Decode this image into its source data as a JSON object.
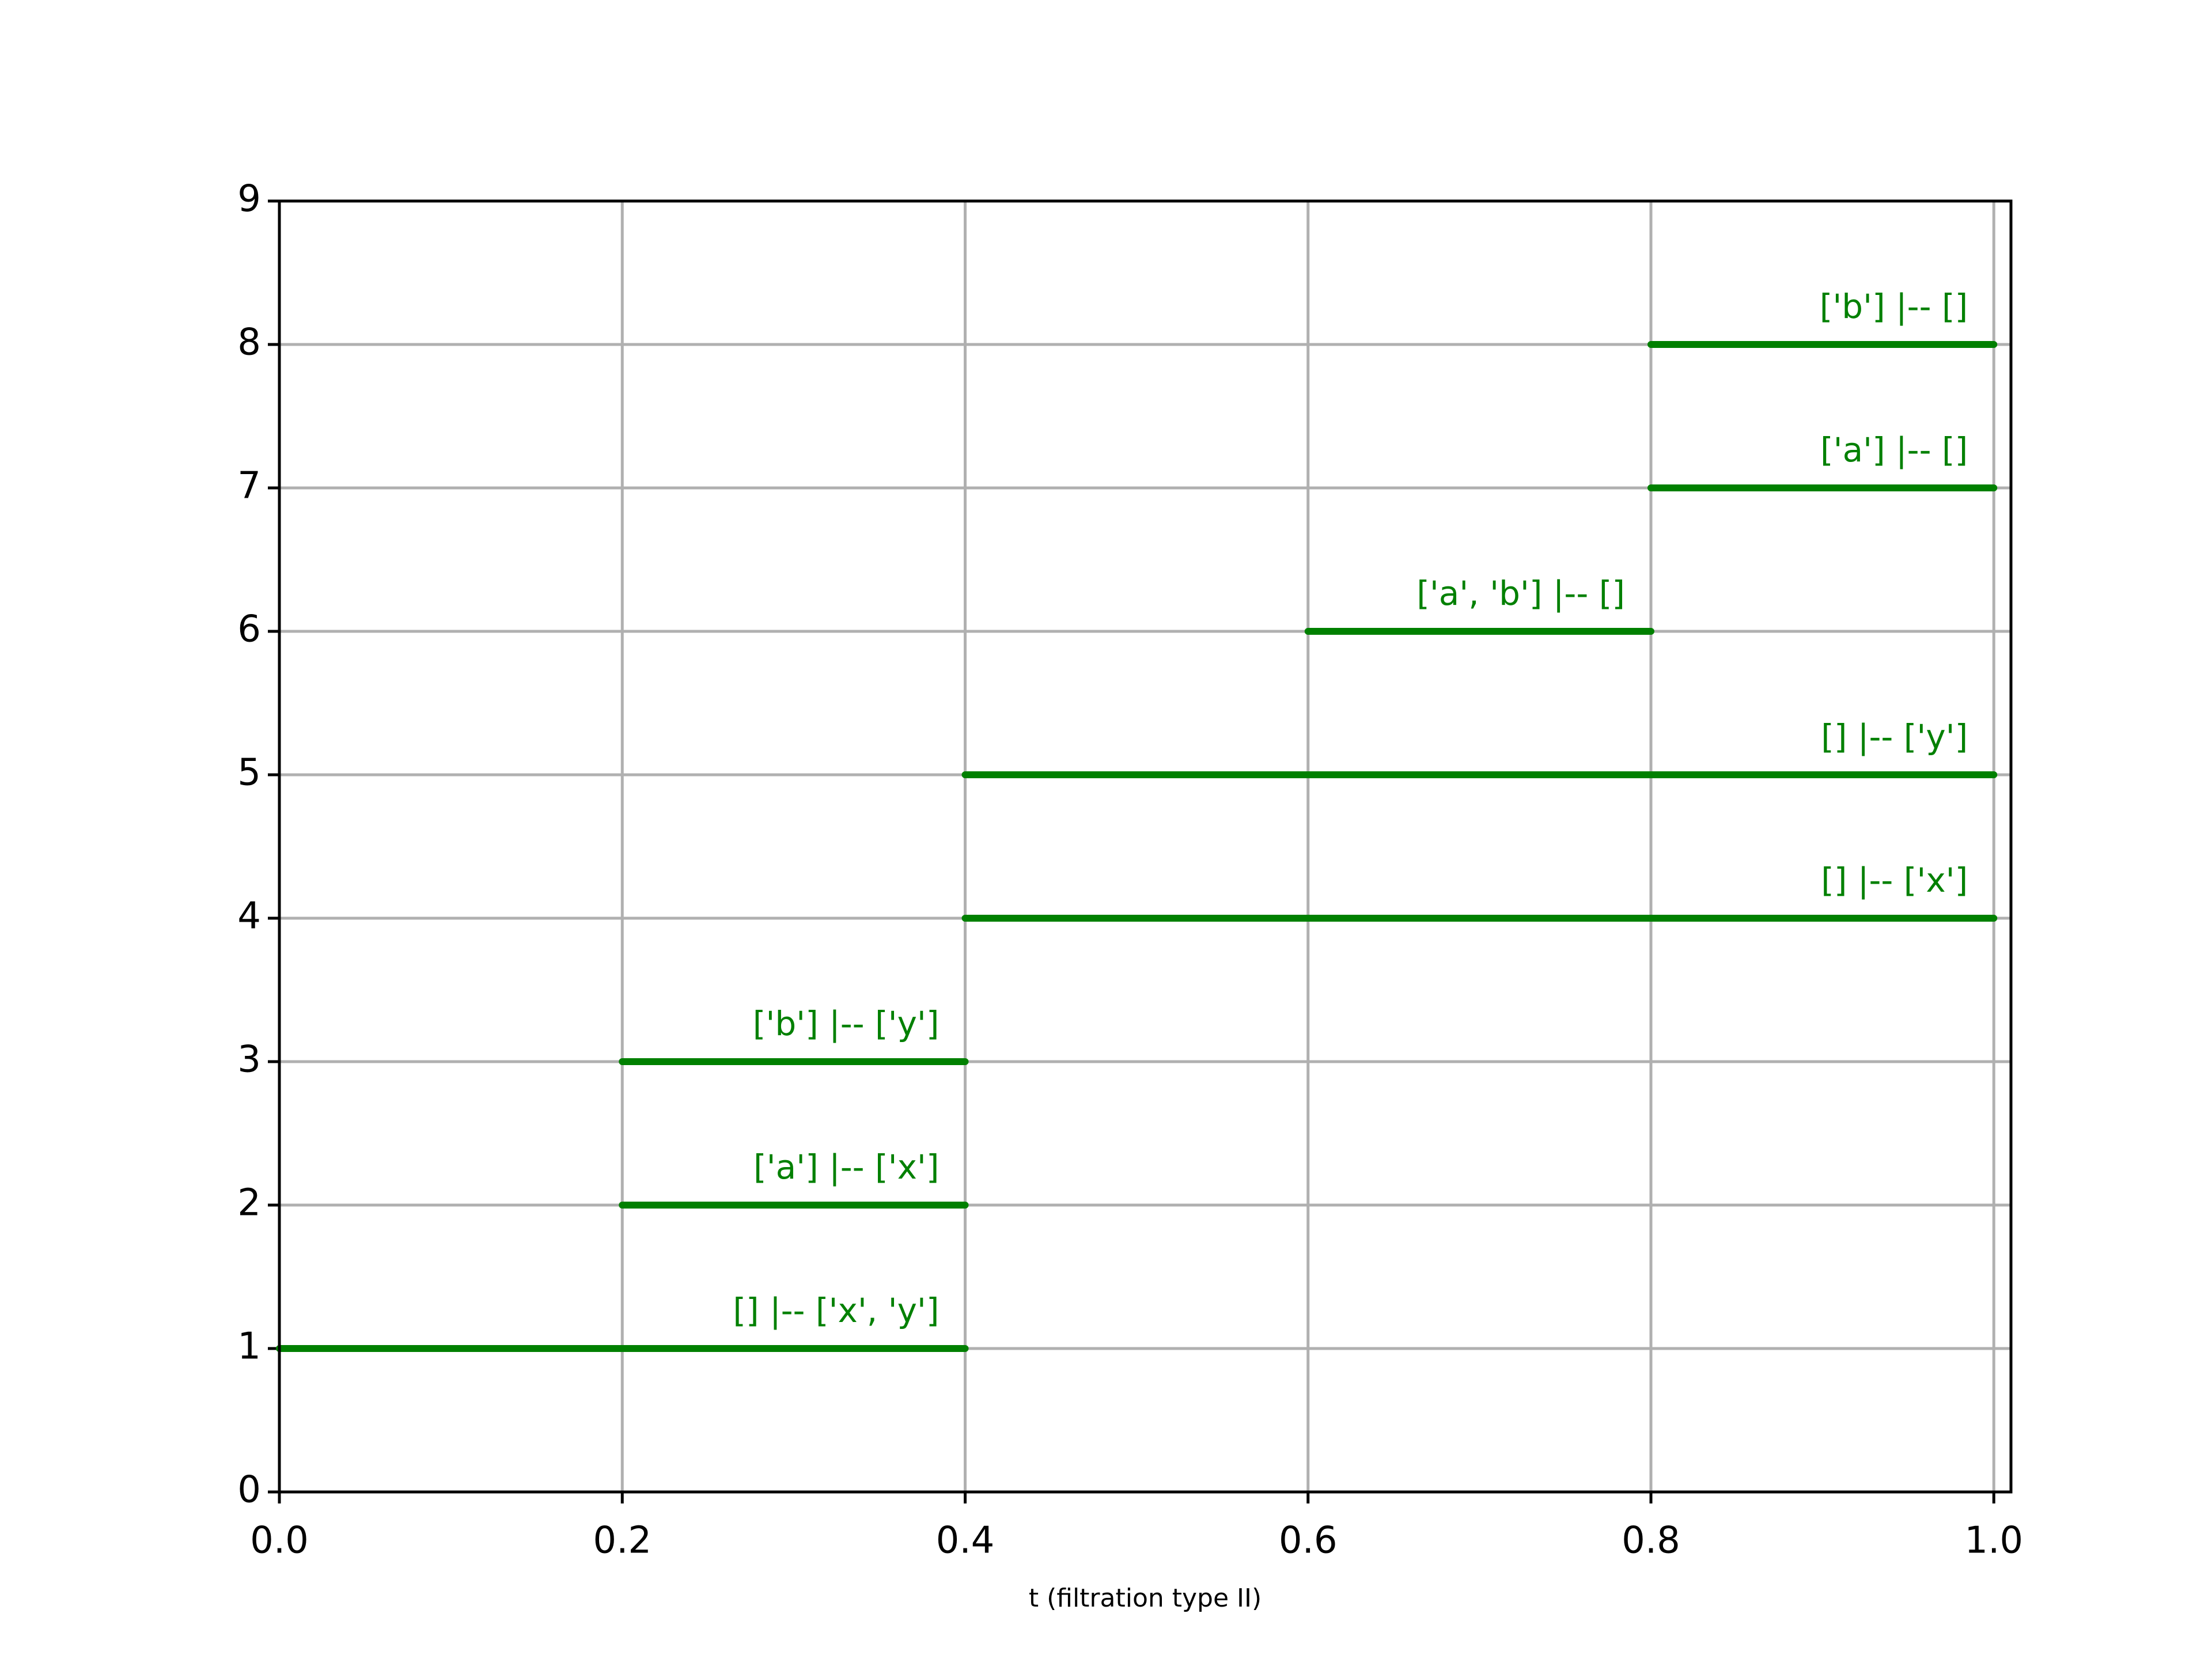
{
  "chart_data": {
    "type": "barcode",
    "xlabel": "t (filtration type II)",
    "color": "green",
    "grid": true,
    "xlim": [
      0,
      1.01
    ],
    "ylim": [
      0,
      9
    ],
    "xticks": [
      {
        "value": 0,
        "label": "0.0"
      },
      0.2,
      0.4,
      0.6,
      0.8,
      {
        "value": 1,
        "label": "1.0"
      }
    ],
    "yticks": [
      0,
      1,
      2,
      3,
      4,
      5,
      6,
      7,
      8,
      9
    ],
    "segments": [
      {
        "y": 1,
        "start": 0,
        "end": 0.4,
        "label": "[] |-- ['x', 'y']"
      },
      {
        "y": 2,
        "start": 0.2,
        "end": 0.4,
        "label": "['a'] |-- ['x']"
      },
      {
        "y": 3,
        "start": 0.2,
        "end": 0.4,
        "label": "['b'] |-- ['y']"
      },
      {
        "y": 4,
        "start": 0.4,
        "end": 1,
        "label": "[] |-- ['x']"
      },
      {
        "y": 5,
        "start": 0.4,
        "end": 1,
        "label": "[] |-- ['y']"
      },
      {
        "y": 6,
        "start": 0.6,
        "end": 0.8,
        "label": "['a', 'b'] |-- []"
      },
      {
        "y": 7,
        "start": 0.8,
        "end": 1,
        "label": "['a'] |-- []"
      },
      {
        "y": 8,
        "start": 0.8,
        "end": 1,
        "label": "['b'] |-- []"
      }
    ]
  }
}
